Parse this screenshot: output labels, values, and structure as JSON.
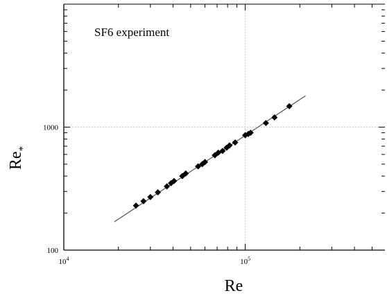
{
  "chart_data": {
    "type": "scatter",
    "annotation": "SF6 experiment",
    "xlabel": "Re",
    "ylabel_main": "Re",
    "ylabel_sub": "*",
    "x_scale": "log",
    "y_scale": "log",
    "xlim": [
      10000,
      1000000
    ],
    "ylim": [
      100,
      10000
    ],
    "x_ticks": [
      {
        "value": 10000,
        "base": "10",
        "exp": "4"
      },
      {
        "value": 100000,
        "base": "10",
        "exp": "5"
      }
    ],
    "y_ticks": [
      {
        "value": 100,
        "label": "100"
      },
      {
        "value": 1000,
        "label": "1000"
      }
    ],
    "gridlines": {
      "x": [
        100000
      ],
      "y": [
        1000
      ]
    },
    "fit_line": {
      "x": [
        19000,
        215000
      ],
      "y": [
        170,
        1800
      ]
    },
    "points": {
      "x": [
        25000,
        27500,
        30000,
        33000,
        37000,
        39000,
        40500,
        45000,
        47000,
        55000,
        58000,
        60000,
        68000,
        71000,
        75000,
        79000,
        82000,
        88000,
        100000,
        104000,
        107000,
        130000,
        145000,
        175000
      ],
      "y": [
        230,
        250,
        270,
        295,
        330,
        350,
        365,
        400,
        420,
        480,
        500,
        520,
        590,
        620,
        640,
        680,
        710,
        750,
        860,
        880,
        900,
        1080,
        1200,
        1480
      ]
    },
    "colors": {
      "points": "#000000",
      "fit_line": "#555555",
      "grid": "#c8c8c8",
      "frame": "#000000"
    }
  }
}
